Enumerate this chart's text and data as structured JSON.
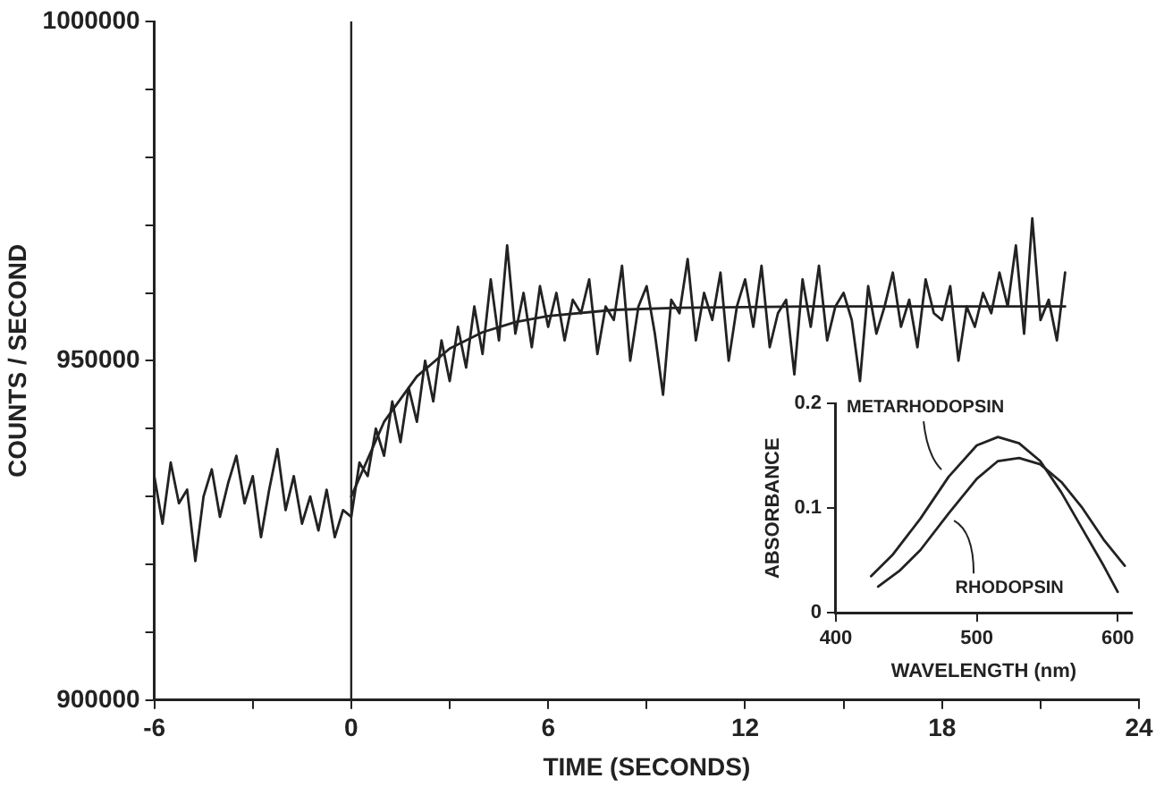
{
  "chart_data": [
    {
      "type": "line",
      "xlabel": "TIME (SECONDS)",
      "ylabel": "COUNTS / SECOND",
      "xlim": [
        -6,
        24
      ],
      "ylim": [
        900000,
        1000000
      ],
      "xticks": [
        -6,
        {
          "value": -3,
          "label": null
        },
        0,
        {
          "value": 3,
          "label": null
        },
        6,
        {
          "value": 9,
          "label": null
        },
        12,
        {
          "value": 15,
          "label": null
        },
        18,
        {
          "value": 21,
          "label": null
        },
        24
      ],
      "yticks": [
        900000,
        {
          "value": 910000,
          "label": null
        },
        {
          "value": 920000,
          "label": null
        },
        {
          "value": 930000,
          "label": null
        },
        {
          "value": 940000,
          "label": null
        },
        950000,
        {
          "value": 960000,
          "label": null
        },
        {
          "value": 970000,
          "label": null
        },
        {
          "value": 980000,
          "label": null
        },
        {
          "value": 990000,
          "label": null
        },
        1000000
      ],
      "ref_lines": [
        {
          "axis": "x",
          "value": 0,
          "color": "#222222"
        }
      ],
      "series": [
        {
          "color": "#222222",
          "x": [
            -6,
            -5.75,
            -5.5,
            -5.25,
            -5,
            -4.75,
            -4.5,
            -4.25,
            -4,
            -3.75,
            -3.5,
            -3.25,
            -3,
            -2.75,
            -2.5,
            -2.25,
            -2,
            -1.75,
            -1.5,
            -1.25,
            -1,
            -0.75,
            -0.5,
            -0.25,
            0,
            0.25,
            0.5,
            0.75,
            1,
            1.25,
            1.5,
            1.75,
            2,
            2.25,
            2.5,
            2.75,
            3,
            3.25,
            3.5,
            3.75,
            4,
            4.25,
            4.5,
            4.75,
            5,
            5.25,
            5.5,
            5.75,
            6,
            6.25,
            6.5,
            6.75,
            7,
            7.25,
            7.5,
            7.75,
            8,
            8.25,
            8.5,
            8.75,
            9,
            9.25,
            9.5,
            9.75,
            10,
            10.25,
            10.5,
            10.75,
            11,
            11.25,
            11.5,
            11.75,
            12,
            12.25,
            12.5,
            12.75,
            13,
            13.25,
            13.5,
            13.75,
            14,
            14.25,
            14.5,
            14.75,
            15,
            15.25,
            15.5,
            15.75,
            16,
            16.25,
            16.5,
            16.75,
            17,
            17.25,
            17.5,
            17.75,
            18,
            18.25,
            18.5,
            18.75,
            19,
            19.25,
            19.5,
            19.75,
            20,
            20.25,
            20.5,
            20.75,
            21,
            21.25,
            21.5,
            21.75
          ],
          "values": [
            933000,
            926000,
            935000,
            929000,
            931000,
            920500,
            930000,
            934000,
            927000,
            932000,
            936000,
            929000,
            933000,
            924000,
            931000,
            937000,
            928000,
            933000,
            926000,
            930000,
            925000,
            931000,
            924000,
            928000,
            927000,
            935000,
            933000,
            940000,
            936000,
            944000,
            938000,
            946000,
            941000,
            950000,
            944000,
            953000,
            947000,
            955000,
            949000,
            958000,
            951000,
            962000,
            953000,
            967000,
            954000,
            960000,
            952000,
            961000,
            955000,
            960000,
            953000,
            959000,
            957000,
            962000,
            951000,
            958000,
            956000,
            964000,
            950000,
            958000,
            961000,
            954000,
            945000,
            959000,
            957000,
            965000,
            953000,
            960000,
            956000,
            963000,
            950000,
            958000,
            962000,
            955000,
            964000,
            952000,
            957000,
            959000,
            948000,
            962000,
            955000,
            964000,
            953000,
            958000,
            960000,
            956000,
            947000,
            961000,
            954000,
            958000,
            963000,
            955000,
            959000,
            952000,
            962000,
            957000,
            956000,
            961000,
            950000,
            958000,
            955000,
            960000,
            957000,
            963000,
            958000,
            967000,
            954000,
            971000,
            956000,
            959000,
            953000,
            963000
          ]
        },
        {
          "color": "#222222",
          "x": [
            0,
            1,
            2,
            3,
            4,
            5,
            6,
            8,
            10,
            14,
            21.75
          ],
          "values": [
            930000,
            941000,
            947700,
            951800,
            954200,
            955700,
            956600,
            957500,
            957800,
            958000,
            958000
          ]
        }
      ]
    },
    {
      "type": "line",
      "xlabel": "WAVELENGTH (nm)",
      "ylabel": "ABSORBANCE",
      "xlim": [
        400,
        610
      ],
      "ylim": [
        0,
        0.2
      ],
      "xticks": [
        400,
        500,
        600
      ],
      "yticks": [
        0,
        0.1,
        0.2
      ],
      "series": [
        {
          "name": "METARHODOPSIN",
          "color": "#222222",
          "x": [
            425,
            440,
            460,
            480,
            500,
            515,
            530,
            545,
            560,
            575,
            590,
            600
          ],
          "values": [
            0.035,
            0.055,
            0.09,
            0.13,
            0.16,
            0.168,
            0.162,
            0.145,
            0.115,
            0.08,
            0.045,
            0.02
          ]
        },
        {
          "name": "RHODOPSIN",
          "color": "#222222",
          "x": [
            430,
            445,
            460,
            480,
            500,
            515,
            530,
            545,
            560,
            575,
            590,
            605
          ],
          "values": [
            0.025,
            0.04,
            0.06,
            0.095,
            0.128,
            0.145,
            0.148,
            0.142,
            0.125,
            0.1,
            0.07,
            0.045
          ]
        }
      ]
    }
  ]
}
